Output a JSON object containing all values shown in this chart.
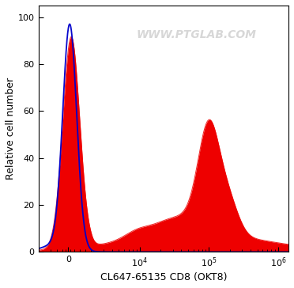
{
  "title": "",
  "xlabel": "CL647-65135 CD8 (OKT8)",
  "ylabel": "Relative cell number",
  "watermark": "WWW.PTGLAB.COM",
  "ylim": [
    0,
    105
  ],
  "yticks": [
    0,
    20,
    40,
    60,
    80,
    100
  ],
  "blue_color": "#0000cc",
  "red_color": "#ee0000",
  "bg_color": "#ffffff",
  "figsize": [
    3.72,
    3.64
  ],
  "dpi": 100,
  "linthresh": 2000,
  "linscale": 0.3
}
